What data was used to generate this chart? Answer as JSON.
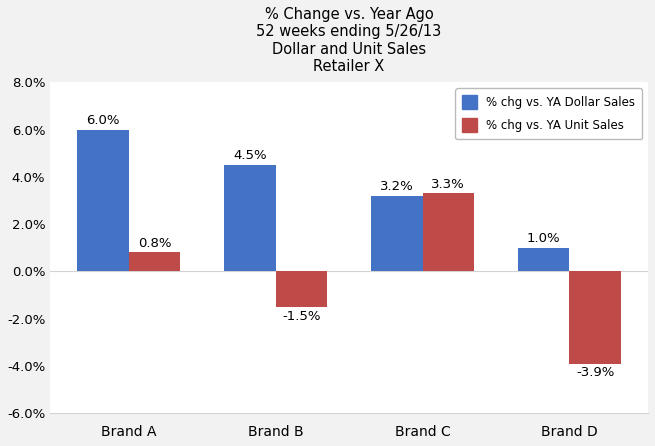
{
  "title": "% Change vs. Year Ago\n52 weeks ending 5/26/13\nDollar and Unit Sales\nRetailer X",
  "categories": [
    "Brand A",
    "Brand B",
    "Brand C",
    "Brand D"
  ],
  "dollar_sales": [
    6.0,
    4.5,
    3.2,
    1.0
  ],
  "unit_sales": [
    0.8,
    -1.5,
    3.3,
    -3.9
  ],
  "dollar_color": "#4472C4",
  "unit_color": "#BE4B48",
  "ylim": [
    -6.0,
    8.0
  ],
  "yticks": [
    -6.0,
    -4.0,
    -2.0,
    0.0,
    2.0,
    4.0,
    6.0,
    8.0
  ],
  "legend_dollar": "% chg vs. YA Dollar Sales",
  "legend_unit": "% chg vs. YA Unit Sales",
  "bar_width": 0.35,
  "title_fontsize": 10.5,
  "tick_fontsize": 9.5,
  "annotation_fontsize": 9.5,
  "legend_fontsize": 8.5,
  "bg_color": "#F2F2F2",
  "plot_bg_color": "#FFFFFF"
}
